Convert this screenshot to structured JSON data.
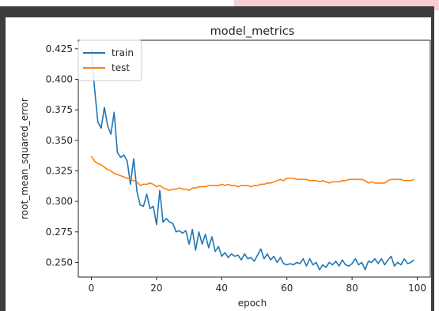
{
  "chart_data": {
    "type": "line",
    "title": "model_metrics",
    "xlabel": "epoch",
    "ylabel": "root_mean_squared_error",
    "xlim": [
      -4,
      104
    ],
    "ylim": [
      0.238,
      0.432
    ],
    "xticks": [
      0,
      20,
      40,
      60,
      80,
      100
    ],
    "yticks": [
      0.25,
      0.275,
      0.3,
      0.325,
      0.35,
      0.375,
      0.4,
      0.425
    ],
    "xtick_labels": [
      "0",
      "20",
      "40",
      "60",
      "80",
      "100"
    ],
    "ytick_labels": [
      "0.250",
      "0.275",
      "0.300",
      "0.325",
      "0.350",
      "0.375",
      "0.400",
      "0.425"
    ],
    "grid": false,
    "legend_position": "top-left",
    "x": [
      0,
      1,
      2,
      3,
      4,
      5,
      6,
      7,
      8,
      9,
      10,
      11,
      12,
      13,
      14,
      15,
      16,
      17,
      18,
      19,
      20,
      21,
      22,
      23,
      24,
      25,
      26,
      27,
      28,
      29,
      30,
      31,
      32,
      33,
      34,
      35,
      36,
      37,
      38,
      39,
      40,
      41,
      42,
      43,
      44,
      45,
      46,
      47,
      48,
      49,
      50,
      51,
      52,
      53,
      54,
      55,
      56,
      57,
      58,
      59,
      60,
      61,
      62,
      63,
      64,
      65,
      66,
      67,
      68,
      69,
      70,
      71,
      72,
      73,
      74,
      75,
      76,
      77,
      78,
      79,
      80,
      81,
      82,
      83,
      84,
      85,
      86,
      87,
      88,
      89,
      90,
      91,
      92,
      93,
      94,
      95,
      96,
      97,
      98,
      99
    ],
    "series": [
      {
        "name": "train",
        "color": "#1f77b4",
        "values": [
          0.425,
          0.392,
          0.365,
          0.36,
          0.377,
          0.362,
          0.355,
          0.373,
          0.34,
          0.336,
          0.338,
          0.333,
          0.314,
          0.335,
          0.308,
          0.297,
          0.296,
          0.306,
          0.294,
          0.296,
          0.281,
          0.309,
          0.283,
          0.286,
          0.283,
          0.282,
          0.275,
          0.276,
          0.274,
          0.276,
          0.265,
          0.277,
          0.26,
          0.275,
          0.265,
          0.273,
          0.262,
          0.271,
          0.259,
          0.263,
          0.255,
          0.258,
          0.254,
          0.257,
          0.255,
          0.256,
          0.252,
          0.257,
          0.253,
          0.254,
          0.251,
          0.256,
          0.261,
          0.253,
          0.257,
          0.252,
          0.255,
          0.25,
          0.254,
          0.249,
          0.248,
          0.249,
          0.248,
          0.25,
          0.249,
          0.253,
          0.247,
          0.253,
          0.248,
          0.25,
          0.244,
          0.248,
          0.246,
          0.25,
          0.248,
          0.251,
          0.247,
          0.252,
          0.248,
          0.247,
          0.249,
          0.253,
          0.248,
          0.25,
          0.244,
          0.251,
          0.25,
          0.253,
          0.249,
          0.253,
          0.248,
          0.252,
          0.255,
          0.247,
          0.25,
          0.248,
          0.253,
          0.249,
          0.25,
          0.252
        ]
      },
      {
        "name": "test",
        "color": "#ff7f0e",
        "values": [
          0.337,
          0.333,
          0.331,
          0.33,
          0.328,
          0.326,
          0.325,
          0.323,
          0.322,
          0.321,
          0.32,
          0.319,
          0.318,
          0.317,
          0.316,
          0.313,
          0.314,
          0.314,
          0.315,
          0.314,
          0.312,
          0.313,
          0.311,
          0.31,
          0.309,
          0.31,
          0.31,
          0.311,
          0.31,
          0.31,
          0.309,
          0.311,
          0.311,
          0.312,
          0.312,
          0.312,
          0.313,
          0.313,
          0.313,
          0.313,
          0.314,
          0.313,
          0.314,
          0.313,
          0.313,
          0.312,
          0.313,
          0.313,
          0.313,
          0.312,
          0.313,
          0.313,
          0.314,
          0.314,
          0.315,
          0.315,
          0.316,
          0.317,
          0.318,
          0.317,
          0.319,
          0.319,
          0.319,
          0.318,
          0.318,
          0.318,
          0.318,
          0.317,
          0.317,
          0.317,
          0.316,
          0.317,
          0.316,
          0.315,
          0.316,
          0.316,
          0.316,
          0.317,
          0.317,
          0.318,
          0.318,
          0.318,
          0.318,
          0.318,
          0.317,
          0.315,
          0.316,
          0.315,
          0.315,
          0.315,
          0.315,
          0.317,
          0.318,
          0.318,
          0.318,
          0.318,
          0.317,
          0.317,
          0.317,
          0.318
        ]
      }
    ]
  }
}
